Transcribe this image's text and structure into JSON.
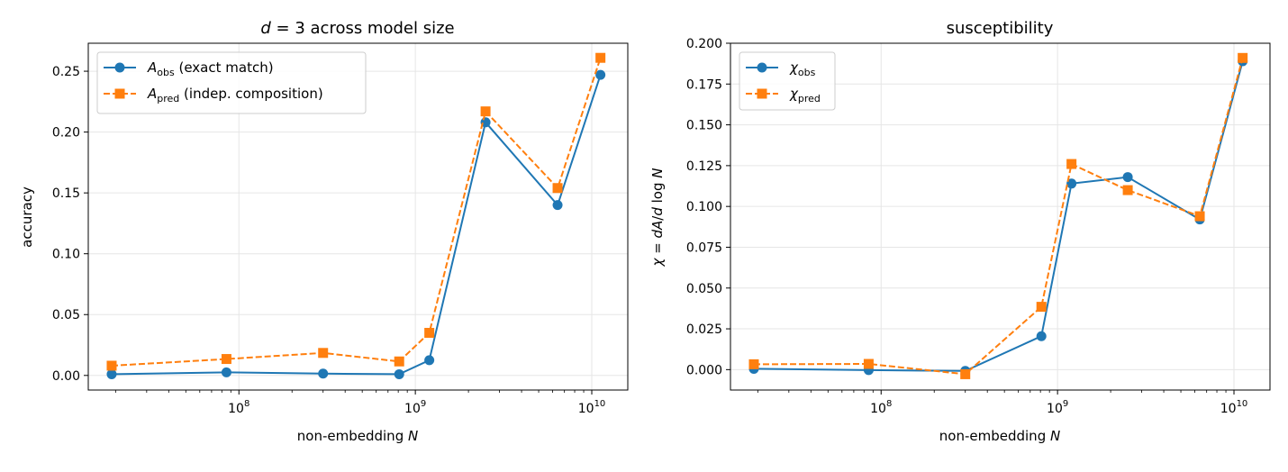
{
  "chart_data": [
    {
      "type": "line",
      "title": "d = 3 across model size",
      "xlabel": "non-embedding N",
      "ylabel": "accuracy",
      "xscale": "log",
      "xlim": [
        14000000.0,
        16000000000.0
      ],
      "ylim": [
        -0.012,
        0.273
      ],
      "xtick_labels": [
        "10^8",
        "10^9",
        "10^10"
      ],
      "ytick_labels": [
        "0.00",
        "0.05",
        "0.10",
        "0.15",
        "0.20",
        "0.25"
      ],
      "grid": true,
      "legend_position": "top-left",
      "x": [
        19000000.0,
        85000000.0,
        300000000.0,
        810000000.0,
        1200000000.0,
        2500000000.0,
        6400000000.0,
        11200000000.0
      ],
      "series": [
        {
          "name": "A_obs (exact match)",
          "name_main": "A",
          "name_sub": "obs",
          "name_rest": " (exact match)",
          "color": "#1f77b4",
          "marker": "circle",
          "linestyle": "solid",
          "values": [
            0.001,
            0.0025,
            0.0015,
            0.001,
            0.0125,
            0.208,
            0.14,
            0.247
          ]
        },
        {
          "name": "A_pred (indep. composition)",
          "name_main": "A",
          "name_sub": "pred",
          "name_rest": " (indep. composition)",
          "color": "#ff7f0e",
          "marker": "square",
          "linestyle": "dashed",
          "values": [
            0.008,
            0.0135,
            0.0185,
            0.0115,
            0.035,
            0.217,
            0.154,
            0.261
          ]
        }
      ]
    },
    {
      "type": "line",
      "title": "susceptibility",
      "xlabel": "non-embedding N",
      "ylabel": "χ = dA/d log N",
      "xscale": "log",
      "xlim": [
        14000000.0,
        16000000000.0
      ],
      "ylim": [
        -0.0125,
        0.2
      ],
      "xtick_labels": [
        "10^8",
        "10^9",
        "10^10"
      ],
      "ytick_labels": [
        "0.000",
        "0.025",
        "0.050",
        "0.075",
        "0.100",
        "0.125",
        "0.150",
        "0.175",
        "0.200"
      ],
      "grid": true,
      "legend_position": "top-left",
      "x": [
        19000000.0,
        85000000.0,
        300000000.0,
        810000000.0,
        1200000000.0,
        2500000000.0,
        6400000000.0,
        11200000000.0
      ],
      "series": [
        {
          "name": "χ_obs",
          "name_main": "χ",
          "name_sub": "obs",
          "name_rest": "",
          "color": "#1f77b4",
          "marker": "circle",
          "linestyle": "solid",
          "values": [
            0.0005,
            -0.0003,
            -0.0008,
            0.0205,
            0.114,
            0.118,
            0.092,
            0.189
          ]
        },
        {
          "name": "χ_pred",
          "name_main": "χ",
          "name_sub": "pred",
          "name_rest": "",
          "color": "#ff7f0e",
          "marker": "square",
          "linestyle": "dashed",
          "values": [
            0.0033,
            0.0035,
            -0.0028,
            0.0385,
            0.126,
            0.11,
            0.094,
            0.191
          ]
        }
      ]
    }
  ]
}
